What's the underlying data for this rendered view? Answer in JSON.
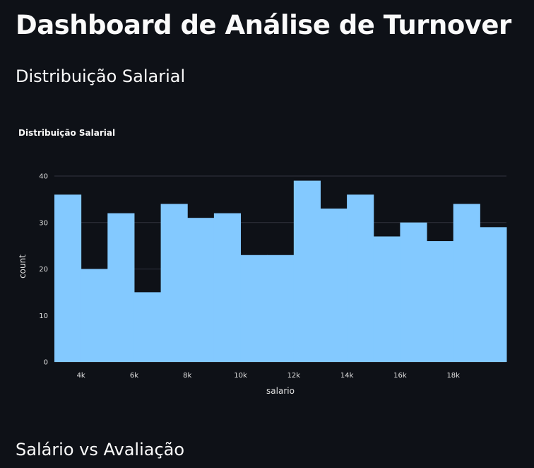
{
  "page": {
    "title": "Dashboard de Análise de Turnover",
    "sections": {
      "distribution": "Distribuição Salarial",
      "scatter": "Salário vs Avaliação"
    }
  },
  "colors": {
    "background": "#0e1117",
    "bar_fill": "#83c9ff",
    "grid": "#31333f",
    "text": "#fafafa"
  },
  "chart_data": {
    "type": "bar",
    "title": "Distribuição Salarial",
    "xlabel": "salario",
    "ylabel": "count",
    "bin_edges": [
      3000,
      4000,
      5000,
      6000,
      7000,
      8000,
      9000,
      10000,
      11000,
      12000,
      13000,
      14000,
      15000,
      16000,
      17000,
      18000,
      19000,
      20000
    ],
    "values": [
      36,
      20,
      32,
      15,
      34,
      31,
      32,
      23,
      23,
      39,
      33,
      36,
      27,
      30,
      26,
      34,
      29
    ],
    "xlim": [
      3000,
      20000
    ],
    "ylim": [
      0,
      40
    ],
    "x_ticks": [
      {
        "value": 4000,
        "label": "4k"
      },
      {
        "value": 6000,
        "label": "6k"
      },
      {
        "value": 8000,
        "label": "8k"
      },
      {
        "value": 10000,
        "label": "10k"
      },
      {
        "value": 12000,
        "label": "12k"
      },
      {
        "value": 14000,
        "label": "14k"
      },
      {
        "value": 16000,
        "label": "16k"
      },
      {
        "value": 18000,
        "label": "18k"
      }
    ],
    "y_ticks": [
      {
        "value": 0,
        "label": "0"
      },
      {
        "value": 10,
        "label": "10"
      },
      {
        "value": 20,
        "label": "20"
      },
      {
        "value": 30,
        "label": "30"
      },
      {
        "value": 40,
        "label": "40"
      }
    ],
    "grid": true,
    "legend": "none"
  }
}
